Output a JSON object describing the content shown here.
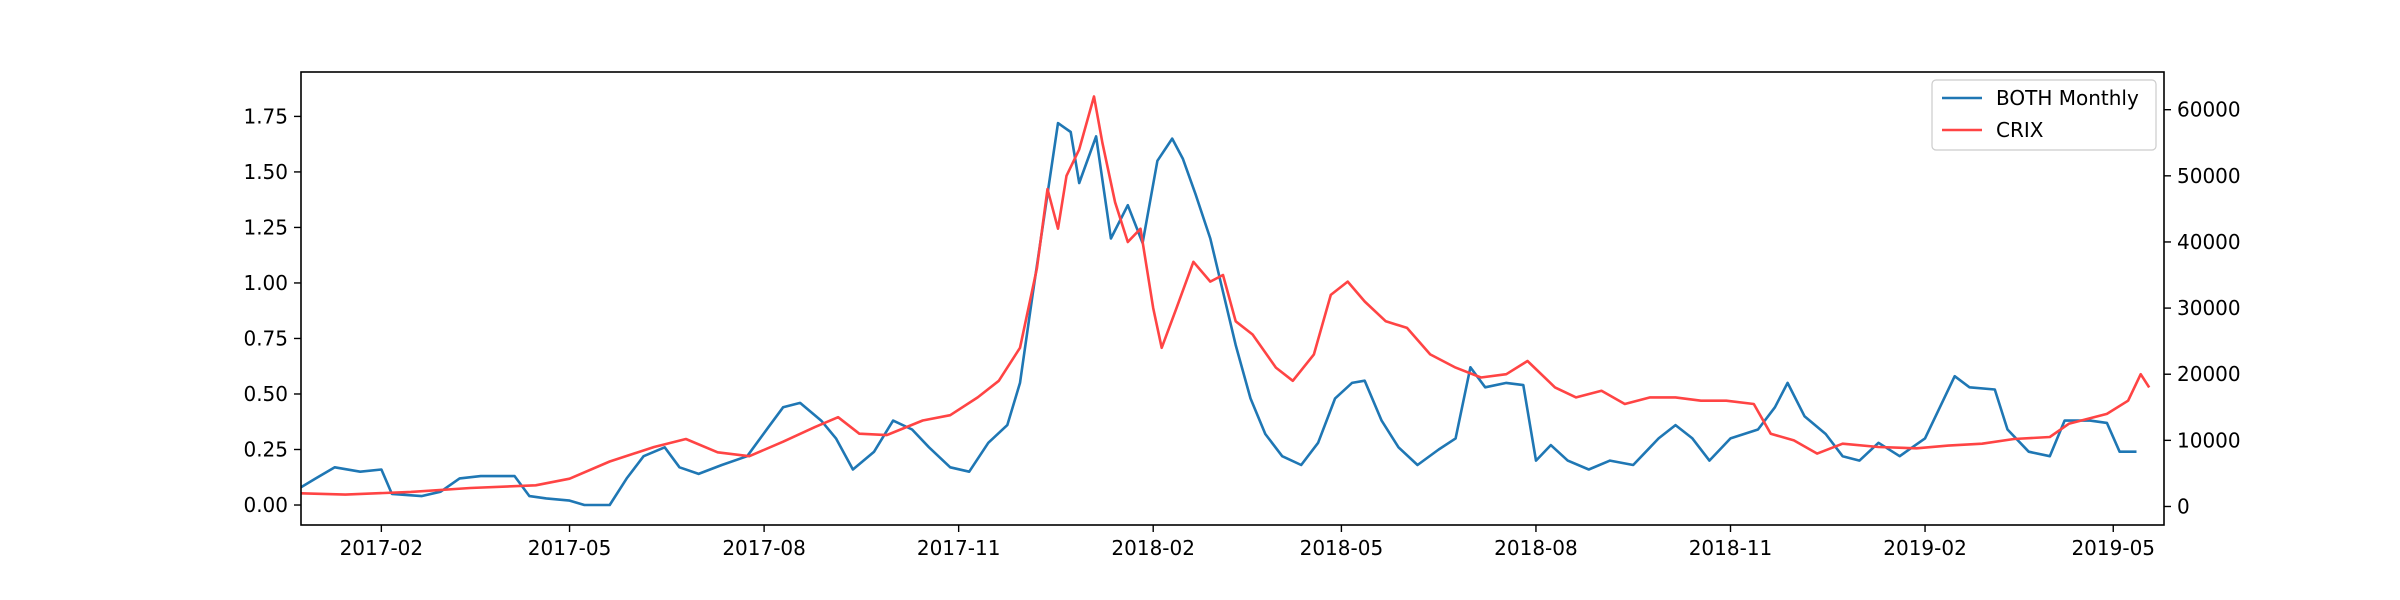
{
  "chart_data": {
    "type": "line",
    "title": "",
    "xlabel": "",
    "ylabel": "",
    "y2label": "",
    "grid": false,
    "legend_position": "top-right",
    "x_range": [
      "2016-12-25",
      "2019-05-25"
    ],
    "ylim": [
      -0.09,
      1.95
    ],
    "y2lim": [
      -2800,
      65700
    ],
    "x_ticks": [
      "2017-02",
      "2017-05",
      "2017-08",
      "2017-11",
      "2018-02",
      "2018-05",
      "2018-08",
      "2018-11",
      "2019-02",
      "2019-05"
    ],
    "y_ticks": [
      "0.00",
      "0.25",
      "0.50",
      "0.75",
      "1.00",
      "1.25",
      "1.50",
      "1.75"
    ],
    "y2_ticks": [
      "0",
      "10000",
      "20000",
      "30000",
      "40000",
      "50000",
      "60000"
    ],
    "series": [
      {
        "name": "BOTH Monthly",
        "axis": "left",
        "color": "#1f77b4",
        "points": [
          [
            "2016-12-25",
            0.08
          ],
          [
            "2017-01-01",
            0.12
          ],
          [
            "2017-01-10",
            0.17
          ],
          [
            "2017-01-22",
            0.15
          ],
          [
            "2017-02-01",
            0.16
          ],
          [
            "2017-02-06",
            0.05
          ],
          [
            "2017-02-20",
            0.04
          ],
          [
            "2017-03-01",
            0.06
          ],
          [
            "2017-03-10",
            0.12
          ],
          [
            "2017-03-20",
            0.13
          ],
          [
            "2017-04-05",
            0.13
          ],
          [
            "2017-04-12",
            0.04
          ],
          [
            "2017-04-20",
            0.03
          ],
          [
            "2017-05-01",
            0.02
          ],
          [
            "2017-05-08",
            0.0
          ],
          [
            "2017-05-20",
            0.0
          ],
          [
            "2017-05-28",
            0.12
          ],
          [
            "2017-06-05",
            0.22
          ],
          [
            "2017-06-15",
            0.26
          ],
          [
            "2017-06-22",
            0.17
          ],
          [
            "2017-07-01",
            0.14
          ],
          [
            "2017-07-12",
            0.18
          ],
          [
            "2017-07-24",
            0.22
          ],
          [
            "2017-08-03",
            0.35
          ],
          [
            "2017-08-10",
            0.44
          ],
          [
            "2017-08-18",
            0.46
          ],
          [
            "2017-08-28",
            0.38
          ],
          [
            "2017-09-04",
            0.3
          ],
          [
            "2017-09-12",
            0.16
          ],
          [
            "2017-09-22",
            0.24
          ],
          [
            "2017-10-01",
            0.38
          ],
          [
            "2017-10-10",
            0.34
          ],
          [
            "2017-10-18",
            0.26
          ],
          [
            "2017-10-28",
            0.17
          ],
          [
            "2017-11-06",
            0.15
          ],
          [
            "2017-11-15",
            0.28
          ],
          [
            "2017-11-24",
            0.36
          ],
          [
            "2017-11-30",
            0.55
          ],
          [
            "2017-12-06",
            0.95
          ],
          [
            "2017-12-13",
            1.4
          ],
          [
            "2017-12-18",
            1.72
          ],
          [
            "2017-12-24",
            1.68
          ],
          [
            "2017-12-28",
            1.45
          ],
          [
            "2018-01-05",
            1.66
          ],
          [
            "2018-01-12",
            1.2
          ],
          [
            "2018-01-20",
            1.35
          ],
          [
            "2018-01-27",
            1.18
          ],
          [
            "2018-02-03",
            1.55
          ],
          [
            "2018-02-10",
            1.65
          ],
          [
            "2018-02-15",
            1.56
          ],
          [
            "2018-02-21",
            1.4
          ],
          [
            "2018-02-28",
            1.2
          ],
          [
            "2018-03-05",
            1.0
          ],
          [
            "2018-03-12",
            0.72
          ],
          [
            "2018-03-19",
            0.48
          ],
          [
            "2018-03-26",
            0.32
          ],
          [
            "2018-04-03",
            0.22
          ],
          [
            "2018-04-12",
            0.18
          ],
          [
            "2018-04-20",
            0.28
          ],
          [
            "2018-04-28",
            0.48
          ],
          [
            "2018-05-06",
            0.55
          ],
          [
            "2018-05-12",
            0.56
          ],
          [
            "2018-05-20",
            0.38
          ],
          [
            "2018-05-28",
            0.26
          ],
          [
            "2018-06-06",
            0.18
          ],
          [
            "2018-06-16",
            0.25
          ],
          [
            "2018-06-24",
            0.3
          ],
          [
            "2018-07-01",
            0.62
          ],
          [
            "2018-07-08",
            0.53
          ],
          [
            "2018-07-18",
            0.55
          ],
          [
            "2018-07-26",
            0.54
          ],
          [
            "2018-08-01",
            0.2
          ],
          [
            "2018-08-08",
            0.27
          ],
          [
            "2018-08-16",
            0.2
          ],
          [
            "2018-08-26",
            0.16
          ],
          [
            "2018-09-05",
            0.2
          ],
          [
            "2018-09-16",
            0.18
          ],
          [
            "2018-09-28",
            0.3
          ],
          [
            "2018-10-06",
            0.36
          ],
          [
            "2018-10-14",
            0.3
          ],
          [
            "2018-10-22",
            0.2
          ],
          [
            "2018-11-01",
            0.3
          ],
          [
            "2018-11-14",
            0.34
          ],
          [
            "2018-11-22",
            0.44
          ],
          [
            "2018-11-28",
            0.55
          ],
          [
            "2018-12-06",
            0.4
          ],
          [
            "2018-12-16",
            0.32
          ],
          [
            "2018-12-24",
            0.22
          ],
          [
            "2019-01-01",
            0.2
          ],
          [
            "2019-01-10",
            0.28
          ],
          [
            "2019-01-20",
            0.22
          ],
          [
            "2019-02-01",
            0.3
          ],
          [
            "2019-02-10",
            0.48
          ],
          [
            "2019-02-15",
            0.58
          ],
          [
            "2019-02-22",
            0.53
          ],
          [
            "2019-03-06",
            0.52
          ],
          [
            "2019-03-12",
            0.34
          ],
          [
            "2019-03-22",
            0.24
          ],
          [
            "2019-04-01",
            0.22
          ],
          [
            "2019-04-08",
            0.38
          ],
          [
            "2019-04-20",
            0.38
          ],
          [
            "2019-04-28",
            0.37
          ],
          [
            "2019-05-04",
            0.24
          ],
          [
            "2019-05-12",
            0.24
          ]
        ]
      },
      {
        "name": "CRIX",
        "axis": "right",
        "color": "#ff4444",
        "points": [
          [
            "2016-12-25",
            2000
          ],
          [
            "2017-01-15",
            1800
          ],
          [
            "2017-02-15",
            2200
          ],
          [
            "2017-03-15",
            2800
          ],
          [
            "2017-04-15",
            3200
          ],
          [
            "2017-05-01",
            4200
          ],
          [
            "2017-05-20",
            6800
          ],
          [
            "2017-06-10",
            9000
          ],
          [
            "2017-06-25",
            10200
          ],
          [
            "2017-07-10",
            8200
          ],
          [
            "2017-07-25",
            7600
          ],
          [
            "2017-08-10",
            9800
          ],
          [
            "2017-08-25",
            12000
          ],
          [
            "2017-09-05",
            13500
          ],
          [
            "2017-09-15",
            11000
          ],
          [
            "2017-09-28",
            10800
          ],
          [
            "2017-10-15",
            13000
          ],
          [
            "2017-10-28",
            13800
          ],
          [
            "2017-11-10",
            16500
          ],
          [
            "2017-11-20",
            19000
          ],
          [
            "2017-11-30",
            24000
          ],
          [
            "2017-12-08",
            36000
          ],
          [
            "2017-12-13",
            48000
          ],
          [
            "2017-12-18",
            42000
          ],
          [
            "2017-12-22",
            50000
          ],
          [
            "2017-12-28",
            54000
          ],
          [
            "2018-01-04",
            62000
          ],
          [
            "2018-01-08",
            55000
          ],
          [
            "2018-01-14",
            46000
          ],
          [
            "2018-01-20",
            40000
          ],
          [
            "2018-01-26",
            42000
          ],
          [
            "2018-02-01",
            30000
          ],
          [
            "2018-02-05",
            24000
          ],
          [
            "2018-02-12",
            30000
          ],
          [
            "2018-02-20",
            37000
          ],
          [
            "2018-02-28",
            34000
          ],
          [
            "2018-03-06",
            35000
          ],
          [
            "2018-03-12",
            28000
          ],
          [
            "2018-03-20",
            26000
          ],
          [
            "2018-03-31",
            21000
          ],
          [
            "2018-04-08",
            19000
          ],
          [
            "2018-04-18",
            23000
          ],
          [
            "2018-04-26",
            32000
          ],
          [
            "2018-05-04",
            34000
          ],
          [
            "2018-05-12",
            31000
          ],
          [
            "2018-05-22",
            28000
          ],
          [
            "2018-06-01",
            27000
          ],
          [
            "2018-06-12",
            23000
          ],
          [
            "2018-06-24",
            21000
          ],
          [
            "2018-07-06",
            19500
          ],
          [
            "2018-07-18",
            20000
          ],
          [
            "2018-07-28",
            22000
          ],
          [
            "2018-08-10",
            18000
          ],
          [
            "2018-08-20",
            16500
          ],
          [
            "2018-09-01",
            17500
          ],
          [
            "2018-09-12",
            15500
          ],
          [
            "2018-09-24",
            16500
          ],
          [
            "2018-10-06",
            16500
          ],
          [
            "2018-10-18",
            16000
          ],
          [
            "2018-10-30",
            16000
          ],
          [
            "2018-11-12",
            15500
          ],
          [
            "2018-11-20",
            11000
          ],
          [
            "2018-12-01",
            10000
          ],
          [
            "2018-12-12",
            8000
          ],
          [
            "2018-12-24",
            9500
          ],
          [
            "2019-01-10",
            9000
          ],
          [
            "2019-01-28",
            8800
          ],
          [
            "2019-02-12",
            9200
          ],
          [
            "2019-02-28",
            9500
          ],
          [
            "2019-03-15",
            10200
          ],
          [
            "2019-04-01",
            10500
          ],
          [
            "2019-04-10",
            12500
          ],
          [
            "2019-04-28",
            14000
          ],
          [
            "2019-05-08",
            16000
          ],
          [
            "2019-05-14",
            20000
          ],
          [
            "2019-05-18",
            18000
          ]
        ]
      }
    ]
  }
}
